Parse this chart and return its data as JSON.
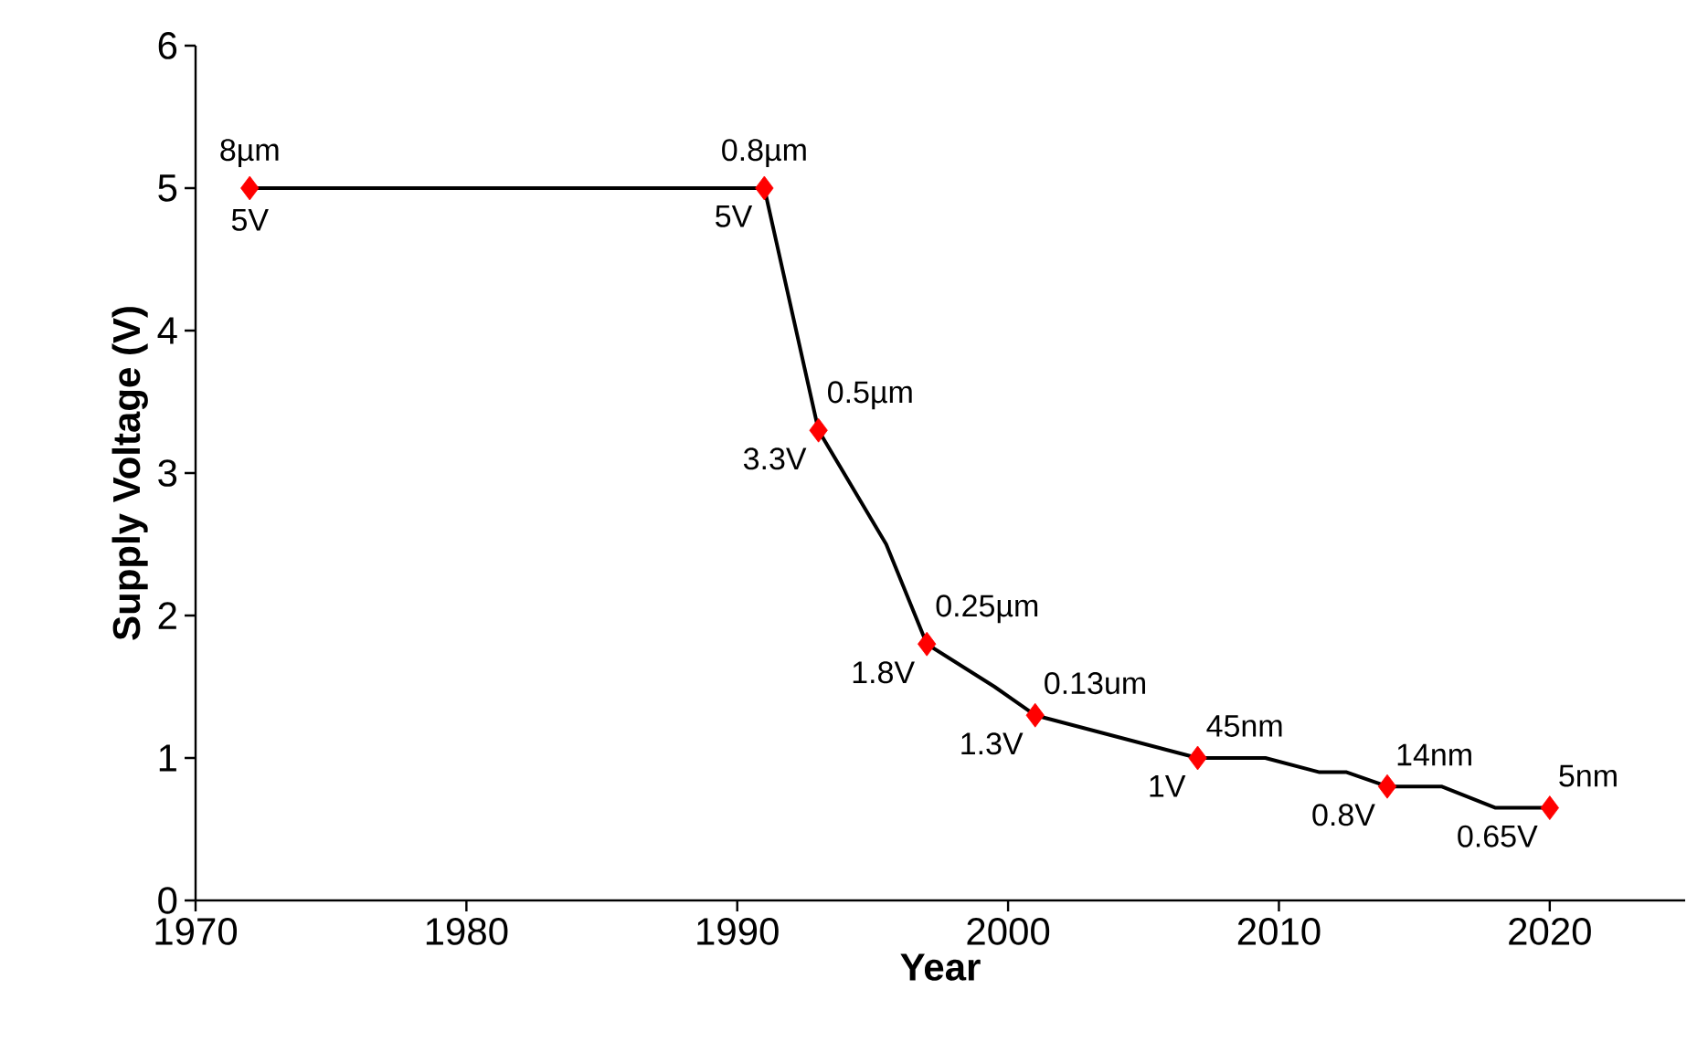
{
  "chart_data": {
    "type": "line",
    "xlabel": "Year",
    "ylabel": "Supply Voltage (V)",
    "xlim": [
      1970,
      2025
    ],
    "ylim": [
      0,
      6
    ],
    "xticks": [
      1970,
      1980,
      1990,
      2000,
      2010,
      2020
    ],
    "yticks": [
      0,
      1,
      2,
      3,
      4,
      5,
      6
    ],
    "grid": false,
    "series": [
      {
        "type": "line",
        "color": "#000000",
        "marker": "none",
        "line_style": "solid",
        "x": [
          1972,
          1991,
          1993,
          1995.5,
          1997,
          1999.5,
          2001,
          2007,
          2009.5,
          2011.5,
          2012.5,
          2014,
          2016,
          2018,
          2020
        ],
        "values": [
          5,
          5,
          3.3,
          2.5,
          1.8,
          1.5,
          1.3,
          1,
          1,
          0.9,
          0.9,
          0.8,
          0.8,
          0.65,
          0.65
        ]
      },
      {
        "type": "scatter",
        "color": "#ff0000",
        "marker": "diamond",
        "x": [
          1972,
          1991,
          1993,
          1997,
          2001,
          2007,
          2014,
          2020
        ],
        "values": [
          5,
          5,
          3.3,
          1.8,
          1.3,
          1,
          0.8,
          0.65
        ]
      }
    ],
    "annotations": [
      {
        "text": "8µm",
        "x": 1972,
        "y": 5
      },
      {
        "text": "5V",
        "x": 1972,
        "y": 5
      },
      {
        "text": "0.8µm",
        "x": 1991,
        "y": 5
      },
      {
        "text": "5V",
        "x": 1991,
        "y": 5
      },
      {
        "text": "0.5µm",
        "x": 1993,
        "y": 3.3
      },
      {
        "text": "3.3V",
        "x": 1993,
        "y": 3.3
      },
      {
        "text": "0.25µm",
        "x": 1997,
        "y": 1.8
      },
      {
        "text": "1.8V",
        "x": 1997,
        "y": 1.8
      },
      {
        "text": "0.13um",
        "x": 2001,
        "y": 1.3
      },
      {
        "text": "1.3V",
        "x": 2001,
        "y": 1.3
      },
      {
        "text": "45nm",
        "x": 2007,
        "y": 1
      },
      {
        "text": "1V",
        "x": 2007,
        "y": 1
      },
      {
        "text": "14nm",
        "x": 2014,
        "y": 0.8
      },
      {
        "text": "0.8V",
        "x": 2014,
        "y": 0.8
      },
      {
        "text": "5nm",
        "x": 2020,
        "y": 0.65
      },
      {
        "text": "0.65V",
        "x": 2020,
        "y": 0.65
      }
    ]
  }
}
